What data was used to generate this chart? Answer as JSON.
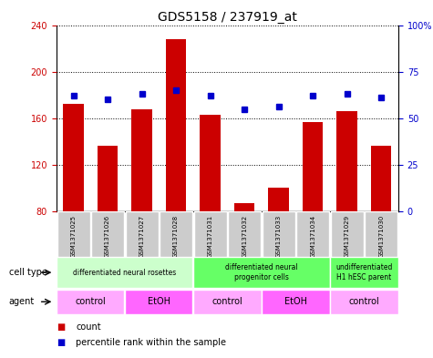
{
  "title": "GDS5158 / 237919_at",
  "samples": [
    "GSM1371025",
    "GSM1371026",
    "GSM1371027",
    "GSM1371028",
    "GSM1371031",
    "GSM1371032",
    "GSM1371033",
    "GSM1371034",
    "GSM1371029",
    "GSM1371030"
  ],
  "counts": [
    172,
    136,
    168,
    228,
    163,
    87,
    100,
    157,
    166,
    136
  ],
  "percentiles": [
    62,
    60,
    63,
    65,
    62,
    55,
    56,
    62,
    63,
    61
  ],
  "ylim_left": [
    80,
    240
  ],
  "ylim_right": [
    0,
    100
  ],
  "yticks_left": [
    80,
    120,
    160,
    200,
    240
  ],
  "yticks_right": [
    0,
    25,
    50,
    75,
    100
  ],
  "cell_type_groups": [
    {
      "label": "differentiated neural rosettes",
      "start": 0,
      "end": 4,
      "color": "#ccffcc"
    },
    {
      "label": "differentiated neural\nprogenitor cells",
      "start": 4,
      "end": 8,
      "color": "#66ff66"
    },
    {
      "label": "undifferentiated\nH1 hESC parent",
      "start": 8,
      "end": 10,
      "color": "#66ff66"
    }
  ],
  "agent_groups": [
    {
      "label": "control",
      "start": 0,
      "end": 2,
      "color": "#ffaaff"
    },
    {
      "label": "EtOH",
      "start": 2,
      "end": 4,
      "color": "#ff66ff"
    },
    {
      "label": "control",
      "start": 4,
      "end": 6,
      "color": "#ffaaff"
    },
    {
      "label": "EtOH",
      "start": 6,
      "end": 8,
      "color": "#ff66ff"
    },
    {
      "label": "control",
      "start": 8,
      "end": 10,
      "color": "#ffaaff"
    }
  ],
  "bar_color": "#cc0000",
  "dot_color": "#0000cc",
  "bar_width": 0.6,
  "background_color": "#ffffff",
  "tick_label_color_left": "#cc0000",
  "tick_label_color_right": "#0000cc",
  "sample_bg_color": "#cccccc"
}
